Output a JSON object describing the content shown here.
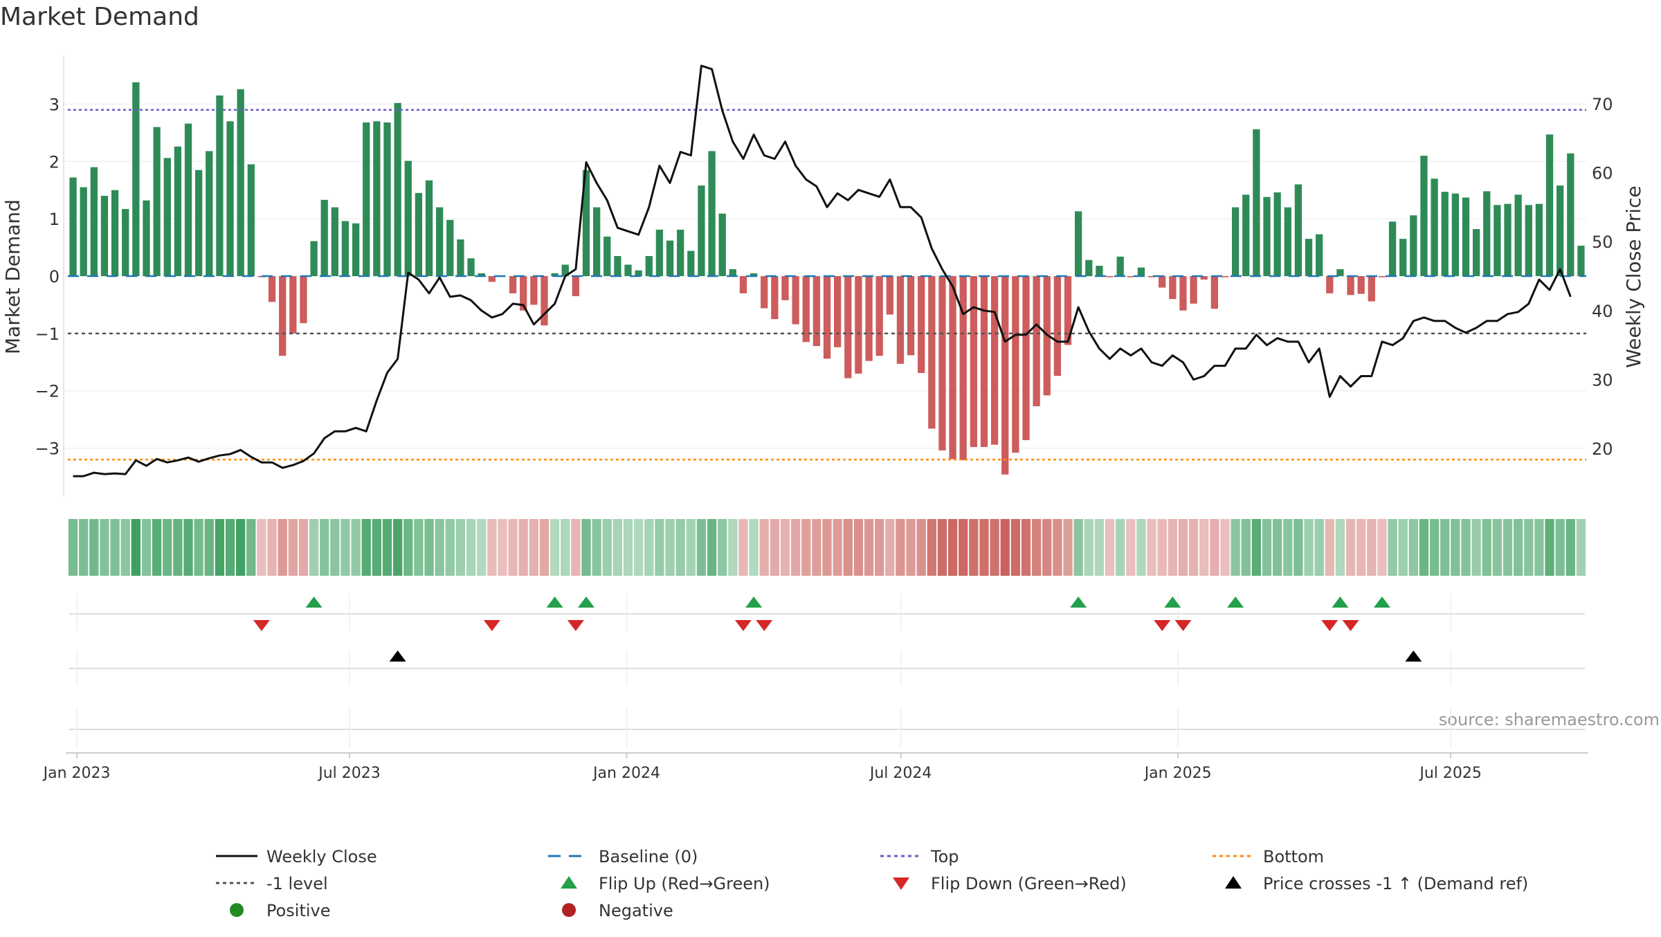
{
  "chart_data": {
    "type": "bar",
    "title": "Market Demand",
    "ylabel": "Market Demand",
    "y2label": "Weekly Close Price",
    "ylim": [
      -3.85,
      3.85
    ],
    "y2lim": [
      13.0,
      77.0
    ],
    "x_start": "2022-12-26",
    "x_end": "2025-09-29",
    "x_ticks": [
      {
        "date": "2023-01-01",
        "label": "Jan 2023"
      },
      {
        "date": "2023-07-01",
        "label": "Jul 2023"
      },
      {
        "date": "2024-01-01",
        "label": "Jan 2024"
      },
      {
        "date": "2024-07-01",
        "label": "Jul 2024"
      },
      {
        "date": "2025-01-01",
        "label": "Jan 2025"
      },
      {
        "date": "2025-07-01",
        "label": "Jul 2025"
      }
    ],
    "y_ticks": [
      {
        "value": 3,
        "label": "3"
      },
      {
        "value": 2,
        "label": "2"
      },
      {
        "value": 1,
        "label": "1"
      },
      {
        "value": 0,
        "label": "0"
      },
      {
        "value": -1,
        "label": "−1"
      },
      {
        "value": -2,
        "label": "−2"
      },
      {
        "value": -3,
        "label": "−3"
      }
    ],
    "y2_ticks": [
      {
        "value": 70,
        "label": "70"
      },
      {
        "value": 60,
        "label": "60"
      },
      {
        "value": 50,
        "label": "50"
      },
      {
        "value": 40,
        "label": "40"
      },
      {
        "value": 30,
        "label": "30"
      },
      {
        "value": 20,
        "label": "20"
      }
    ],
    "levels": {
      "top": 2.9,
      "bottom": -3.2,
      "baseline": 0,
      "minus_one": -1
    },
    "colors": {
      "positive": "#2e8b57",
      "negative": "#cd5c5c",
      "price_line": "#111111",
      "baseline": "#1f77b4",
      "top": "#6a5acd",
      "bottom": "#ff8c00",
      "minus_one": "#555555",
      "flip_up": "#22a04b",
      "flip_down": "#d62728",
      "cross": "#000000",
      "legend_positive": "#228b22",
      "legend_negative": "#b22222"
    },
    "demand": [
      1.72,
      1.55,
      1.9,
      1.4,
      1.5,
      1.17,
      3.38,
      1.32,
      2.6,
      2.06,
      2.26,
      2.66,
      1.85,
      2.18,
      3.15,
      2.7,
      3.26,
      1.95,
      -0.02,
      -0.45,
      -1.39,
      -1.0,
      -0.82,
      0.61,
      1.33,
      1.2,
      0.96,
      0.92,
      2.68,
      2.7,
      2.68,
      3.02,
      2.01,
      1.45,
      1.67,
      1.2,
      0.98,
      0.64,
      0.31,
      0.05,
      -0.1,
      -0.01,
      -0.3,
      -0.6,
      -0.5,
      -0.86,
      0.05,
      0.2,
      -0.35,
      1.85,
      1.2,
      0.69,
      0.35,
      0.2,
      0.1,
      0.35,
      0.81,
      0.62,
      0.81,
      0.44,
      1.58,
      2.18,
      1.09,
      0.12,
      -0.3,
      0.05,
      -0.56,
      -0.75,
      -0.42,
      -0.84,
      -1.15,
      -1.22,
      -1.44,
      -1.24,
      -1.78,
      -1.7,
      -1.48,
      -1.39,
      -0.67,
      -1.53,
      -1.38,
      -1.69,
      -2.66,
      -3.04,
      -3.19,
      -3.21,
      -2.98,
      -2.98,
      -2.94,
      -3.46,
      -3.08,
      -2.86,
      -2.27,
      -2.08,
      -1.74,
      -1.2,
      1.13,
      0.28,
      0.18,
      -0.02,
      0.34,
      -0.02,
      0.15,
      -0.02,
      -0.2,
      -0.4,
      -0.6,
      -0.48,
      -0.06,
      -0.57,
      -0.02,
      1.2,
      1.42,
      2.56,
      1.38,
      1.46,
      1.2,
      1.6,
      0.65,
      0.73,
      -0.3,
      0.12,
      -0.33,
      -0.31,
      -0.44,
      -0.02,
      0.95,
      0.65,
      1.06,
      2.1,
      1.7,
      1.47,
      1.44,
      1.37,
      0.82,
      1.48,
      1.24,
      1.26,
      1.42,
      1.24,
      1.26,
      2.47,
      1.58,
      2.14,
      0.53
    ],
    "price": [
      16.0,
      16.0,
      16.5,
      16.3,
      16.4,
      16.3,
      18.3,
      17.5,
      18.5,
      18.0,
      18.3,
      18.7,
      18.1,
      18.6,
      19.0,
      19.2,
      19.8,
      18.8,
      18.0,
      18.0,
      17.2,
      17.6,
      18.2,
      19.3,
      21.5,
      22.5,
      22.5,
      23.0,
      22.5,
      27.0,
      31.0,
      33.0,
      45.5,
      44.5,
      42.5,
      44.8,
      42.0,
      42.2,
      41.5,
      40.0,
      39.0,
      39.5,
      41.0,
      40.8,
      38.0,
      39.5,
      41.0,
      45.0,
      46.0,
      61.5,
      58.5,
      56.0,
      52.0,
      51.5,
      51.0,
      55.0,
      61.0,
      58.5,
      63.0,
      62.5,
      75.5,
      75.0,
      69.0,
      64.5,
      62.0,
      65.5,
      62.5,
      62.0,
      64.5,
      61.0,
      59.0,
      58.0,
      55.0,
      57.0,
      56.0,
      57.5,
      57.0,
      56.5,
      59.0,
      55.0,
      55.0,
      53.5,
      49.0,
      46.0,
      43.5,
      39.5,
      40.5,
      40.0,
      39.8,
      35.5,
      36.5,
      36.5,
      38.0,
      36.5,
      35.5,
      35.5,
      40.5,
      37.0,
      34.5,
      33.0,
      34.5,
      33.5,
      34.5,
      32.5,
      32.0,
      33.5,
      32.5,
      30.0,
      30.5,
      32.0,
      32.0,
      34.5,
      34.5,
      36.5,
      35.0,
      36.0,
      35.5,
      35.5,
      32.5,
      34.5,
      27.5,
      30.5,
      29.0,
      30.5,
      30.5,
      35.5,
      35.0,
      36.0,
      38.5,
      39.0,
      38.5,
      38.5,
      37.5,
      36.8,
      37.5,
      38.5,
      38.5,
      39.5,
      39.8,
      41.0,
      44.5,
      43.0,
      46.0,
      42.0
    ],
    "flip_up_weeks": [
      23,
      46,
      49,
      65,
      96,
      105,
      111,
      121,
      125
    ],
    "flip_down_weeks": [
      18,
      40,
      48,
      64,
      66,
      104,
      106,
      120,
      122
    ],
    "cross_weeks": [
      31,
      128
    ],
    "watermark": "source: sharemaestro.com",
    "legend": [
      {
        "label": "Weekly Close",
        "marker": "line-solid",
        "color": "#111111"
      },
      {
        "label": "Baseline (0)",
        "marker": "line-dash",
        "color": "#1f77b4"
      },
      {
        "label": "Top",
        "marker": "line-dot",
        "color": "#6a5acd"
      },
      {
        "label": "Bottom",
        "marker": "line-dot",
        "color": "#ff8c00"
      },
      {
        "label": "-1 level",
        "marker": "line-dot",
        "color": "#555555"
      },
      {
        "label": "Flip Up (Red→Green)",
        "marker": "tri-up",
        "color": "#22a04b"
      },
      {
        "label": "Flip Down (Green→Red)",
        "marker": "tri-down",
        "color": "#d62728"
      },
      {
        "label": "Price crosses -1 ↑ (Demand ref)",
        "marker": "tri-up",
        "color": "#000000"
      },
      {
        "label": "Positive",
        "marker": "dot",
        "color": "#228b22"
      },
      {
        "label": "Negative",
        "marker": "dot",
        "color": "#b22222"
      }
    ]
  }
}
